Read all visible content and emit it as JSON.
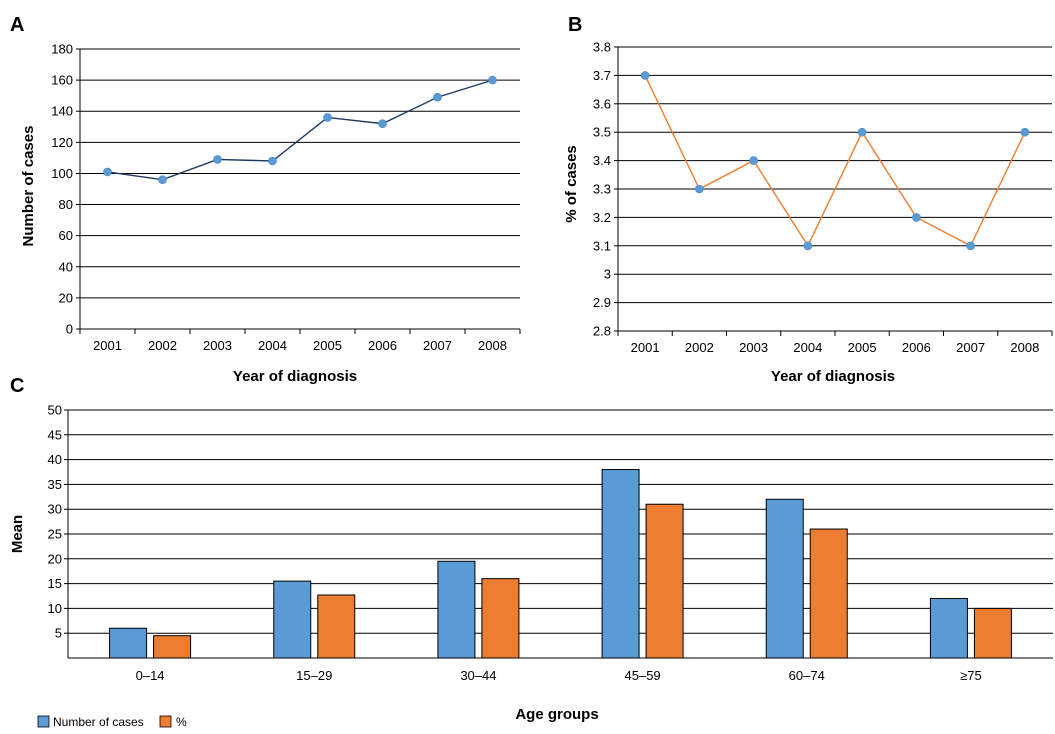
{
  "colors": {
    "blue": "#5b9bd5",
    "orange": "#ed7d31",
    "navy": "#1f3864"
  },
  "chart_data": [
    {
      "panel": "A",
      "type": "line",
      "x": [
        "2001",
        "2002",
        "2003",
        "2004",
        "2005",
        "2006",
        "2007",
        "2008"
      ],
      "values": [
        101,
        96,
        109,
        108,
        136,
        132,
        149,
        160
      ],
      "xlabel": "Year of diagnosis",
      "ylabel": "Number of cases",
      "ylim": [
        0,
        180
      ],
      "yticks": [
        "0",
        "20",
        "40",
        "60",
        "80",
        "100",
        "120",
        "140",
        "160",
        "180"
      ],
      "grid": true
    },
    {
      "panel": "B",
      "type": "line",
      "x": [
        "2001",
        "2002",
        "2003",
        "2004",
        "2005",
        "2006",
        "2007",
        "2008"
      ],
      "values": [
        3.7,
        3.3,
        3.4,
        3.1,
        3.5,
        3.2,
        3.1,
        3.5
      ],
      "xlabel": "Year of diagnosis",
      "ylabel": "% of cases",
      "ylim": [
        2.8,
        3.8
      ],
      "yticks": [
        "2.8",
        "2.9",
        "3",
        "3.1",
        "3.2",
        "3.3",
        "3.4",
        "3.5",
        "3.6",
        "3.7",
        "3.8"
      ],
      "grid": true
    },
    {
      "panel": "C",
      "type": "bar",
      "categories": [
        "0–14",
        "15–29",
        "30–44",
        "45–59",
        "60–74",
        "≥75"
      ],
      "series": [
        {
          "name": "Number of cases",
          "values": [
            6,
            15.5,
            19.5,
            38,
            32,
            12
          ]
        },
        {
          "name": "%",
          "values": [
            4.5,
            12.7,
            16,
            31,
            26,
            10
          ]
        }
      ],
      "xlabel": "Age groups",
      "ylabel": "Mean",
      "ylim": [
        0,
        50
      ],
      "yticks": [
        "5",
        "10",
        "15",
        "20",
        "25",
        "30",
        "35",
        "40",
        "45",
        "50"
      ],
      "grid": true,
      "legend": "bottom-left"
    }
  ]
}
